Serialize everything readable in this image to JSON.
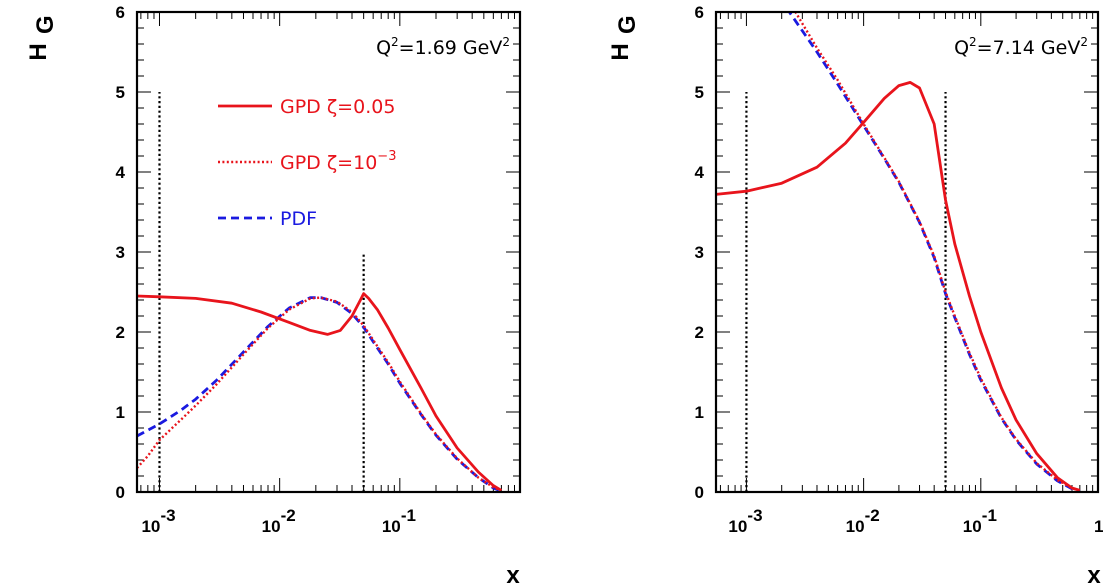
{
  "colors": {
    "gpd_a": "#e8141c",
    "gpd_b": "#e8141c",
    "pdf": "#1a1ae0",
    "frame": "#000000",
    "marker": "#000000"
  },
  "chart_data": [
    {
      "type": "line",
      "xscale": "log",
      "xlim": [
        0.00065,
        1.0
      ],
      "ylim": [
        0,
        6
      ],
      "xlabel": "x",
      "ylabel_main": "H",
      "ylabel_sub": "G",
      "yticks": [
        0,
        1,
        2,
        3,
        4,
        5,
        6
      ],
      "ytick_labels": [
        "0",
        "1",
        "2",
        "3",
        "4",
        "5",
        "6"
      ],
      "xticks": [
        0.001,
        0.01,
        0.1
      ],
      "xtick_base": [
        "10",
        "10",
        "10"
      ],
      "xtick_exp": [
        "-3",
        "-2",
        "-1"
      ],
      "annotation": {
        "prefix": "Q",
        "sup": "2",
        "middle": "=1.69 GeV",
        "sup2": "2"
      },
      "legend": [
        {
          "label": "GPD ζ=0.05",
          "sup": "",
          "series": 0
        },
        {
          "label": "GPD ζ=10",
          "sup": "−3",
          "series": 1
        },
        {
          "label": "PDF",
          "sup": "",
          "series": 2
        }
      ],
      "markers": [
        {
          "x": 0.001,
          "ytop": 5.0
        },
        {
          "x": 0.05,
          "ytop": 3.0
        }
      ],
      "series": [
        {
          "style": "solid",
          "x": [
            0.00065,
            0.001,
            0.002,
            0.004,
            0.007,
            0.012,
            0.018,
            0.025,
            0.032,
            0.04,
            0.047,
            0.05,
            0.055,
            0.065,
            0.08,
            0.1,
            0.15,
            0.2,
            0.3,
            0.45,
            0.6,
            0.7
          ],
          "y": [
            2.45,
            2.44,
            2.42,
            2.36,
            2.25,
            2.12,
            2.02,
            1.97,
            2.02,
            2.2,
            2.4,
            2.48,
            2.42,
            2.28,
            2.05,
            1.78,
            1.3,
            0.95,
            0.55,
            0.25,
            0.08,
            0.02
          ]
        },
        {
          "style": "dotted",
          "x": [
            0.00065,
            0.0008,
            0.001,
            0.0015,
            0.002,
            0.003,
            0.005,
            0.008,
            0.012,
            0.018,
            0.022,
            0.03,
            0.04,
            0.05,
            0.06,
            0.08,
            0.1,
            0.15,
            0.2,
            0.3,
            0.45,
            0.6,
            0.7
          ],
          "y": [
            0.3,
            0.45,
            0.65,
            0.9,
            1.08,
            1.35,
            1.72,
            2.05,
            2.28,
            2.42,
            2.43,
            2.38,
            2.25,
            2.08,
            1.9,
            1.62,
            1.38,
            0.98,
            0.72,
            0.42,
            0.18,
            0.06,
            0.02
          ]
        },
        {
          "style": "dashed",
          "x": [
            0.00065,
            0.001,
            0.0015,
            0.002,
            0.003,
            0.005,
            0.008,
            0.012,
            0.018,
            0.022,
            0.03,
            0.04,
            0.05,
            0.06,
            0.08,
            0.1,
            0.15,
            0.2,
            0.3,
            0.45,
            0.6,
            0.7
          ],
          "y": [
            0.7,
            0.85,
            1.02,
            1.16,
            1.4,
            1.75,
            2.07,
            2.3,
            2.43,
            2.43,
            2.37,
            2.23,
            2.06,
            1.88,
            1.6,
            1.36,
            0.97,
            0.71,
            0.41,
            0.18,
            0.05,
            0.01
          ]
        }
      ]
    },
    {
      "type": "line",
      "xscale": "log",
      "xlim": [
        0.00055,
        1.0
      ],
      "ylim": [
        0,
        6
      ],
      "xlabel": "x",
      "ylabel_main": "H",
      "ylabel_sub": "G",
      "yticks": [
        0,
        1,
        2,
        3,
        4,
        5,
        6
      ],
      "ytick_labels": [
        "0",
        "1",
        "2",
        "3",
        "4",
        "5",
        "6"
      ],
      "xticks": [
        0.001,
        0.01,
        0.1,
        1
      ],
      "xtick_base": [
        "10",
        "10",
        "10",
        "1"
      ],
      "xtick_exp": [
        "-3",
        "-2",
        "-1",
        ""
      ],
      "annotation": {
        "prefix": "Q",
        "sup": "2",
        "middle": "=7.14 GeV",
        "sup2": "2"
      },
      "legend": [],
      "markers": [
        {
          "x": 0.001,
          "ytop": 5.0
        },
        {
          "x": 0.05,
          "ytop": 5.0
        }
      ],
      "series": [
        {
          "style": "solid",
          "x": [
            0.00055,
            0.001,
            0.002,
            0.004,
            0.007,
            0.01,
            0.015,
            0.02,
            0.025,
            0.03,
            0.04,
            0.05,
            0.06,
            0.08,
            0.1,
            0.15,
            0.2,
            0.3,
            0.45,
            0.6,
            0.7
          ],
          "y": [
            3.72,
            3.76,
            3.86,
            4.06,
            4.36,
            4.62,
            4.92,
            5.08,
            5.12,
            5.05,
            4.6,
            3.65,
            3.1,
            2.45,
            2.0,
            1.3,
            0.9,
            0.48,
            0.18,
            0.05,
            0.02
          ]
        },
        {
          "style": "dotted",
          "x": [
            0.0025,
            0.004,
            0.006,
            0.01,
            0.015,
            0.02,
            0.03,
            0.04,
            0.05,
            0.06,
            0.08,
            0.1,
            0.15,
            0.2,
            0.3,
            0.45,
            0.6,
            0.7
          ],
          "y": [
            6.05,
            5.55,
            5.15,
            4.6,
            4.18,
            3.88,
            3.38,
            2.95,
            2.5,
            2.2,
            1.74,
            1.42,
            0.93,
            0.66,
            0.36,
            0.15,
            0.05,
            0.01
          ]
        },
        {
          "style": "dashed",
          "x": [
            0.0022,
            0.004,
            0.006,
            0.01,
            0.015,
            0.02,
            0.03,
            0.04,
            0.05,
            0.06,
            0.08,
            0.1,
            0.15,
            0.2,
            0.3,
            0.45,
            0.6,
            0.7
          ],
          "y": [
            6.05,
            5.5,
            5.1,
            4.58,
            4.17,
            3.87,
            3.37,
            2.93,
            2.48,
            2.18,
            1.72,
            1.4,
            0.92,
            0.65,
            0.35,
            0.14,
            0.04,
            0.01
          ]
        }
      ]
    }
  ]
}
